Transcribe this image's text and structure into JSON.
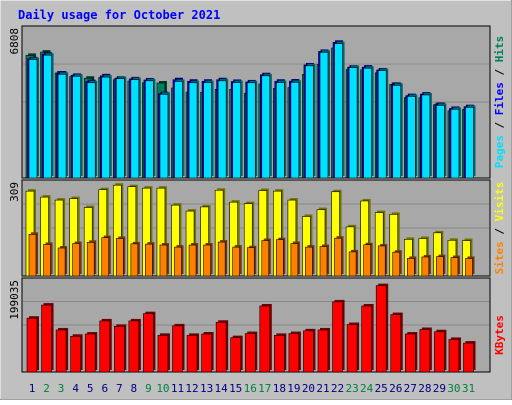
{
  "chart_data": [
    {
      "type": "bar",
      "title": "Daily usage for October 2021",
      "categories": [
        "1",
        "2",
        "3",
        "4",
        "5",
        "6",
        "7",
        "8",
        "9",
        "10",
        "11",
        "12",
        "13",
        "14",
        "15",
        "16",
        "17",
        "18",
        "19",
        "20",
        "21",
        "22",
        "23",
        "24",
        "25",
        "26",
        "27",
        "28",
        "29",
        "30",
        "31"
      ],
      "weekend_days": [
        "2",
        "3",
        "9",
        "10",
        "16",
        "17",
        "23",
        "24",
        "30",
        "31"
      ],
      "series": [
        {
          "name": "Hits",
          "color": "#00805c",
          "values": [
            5640,
            5790,
            4830,
            4660,
            4590,
            4620,
            4520,
            4460,
            4380,
            4370,
            4140,
            3950,
            3940,
            4080,
            4080,
            3900,
            4320,
            4120,
            4160,
            4770,
            5220,
            5980,
            4990,
            4980,
            4840,
            4310,
            3700,
            3690,
            3370,
            3090,
            3160
          ]
        },
        {
          "name": "Files",
          "color": "#0000ff",
          "values": [
            5480,
            5690,
            4820,
            4720,
            4430,
            4700,
            4590,
            4560,
            4510,
            3880,
            4520,
            4450,
            4450,
            4520,
            4440,
            4420,
            4750,
            4450,
            4460,
            5200,
            5820,
            6240,
            5100,
            5100,
            4970,
            4300,
            3790,
            3860,
            3380,
            3200,
            3280
          ]
        },
        {
          "name": "Pages",
          "color": "#00e0ff",
          "values": [
            5450,
            5650,
            4770,
            4680,
            4380,
            4640,
            4570,
            4520,
            4470,
            3850,
            4440,
            4380,
            4390,
            4470,
            4390,
            4380,
            4700,
            4390,
            4400,
            5160,
            5780,
            6180,
            5080,
            5050,
            4940,
            4260,
            3750,
            3820,
            3340,
            3160,
            3250
          ]
        },
        {
          "name": "Visits",
          "color": "#ffff00",
          "values": [
            285,
            265,
            255,
            260,
            230,
            290,
            305,
            300,
            295,
            295,
            238,
            218,
            232,
            288,
            248,
            243,
            287,
            285,
            255,
            200,
            223,
            283,
            165,
            252,
            213,
            207,
            123,
            126,
            145,
            120,
            119
          ]
        },
        {
          "name": "Sites",
          "color": "#ff8000",
          "values": [
            140,
            106,
            94,
            109,
            113,
            129,
            126,
            108,
            107,
            104,
            97,
            104,
            104,
            114,
            97,
            95,
            119,
            122,
            109,
            97,
            99,
            127,
            81,
            105,
            101,
            80,
            59,
            64,
            65,
            62,
            59
          ]
        }
      ],
      "ylabel_top": "Pages / Files / Hits",
      "ylabel_mid": "Sites / Visits",
      "ymax_top": 6808,
      "ymax_mid": 309,
      "grid": true
    },
    {
      "type": "bar",
      "categories": [
        "1",
        "2",
        "3",
        "4",
        "5",
        "6",
        "7",
        "8",
        "9",
        "10",
        "11",
        "12",
        "13",
        "14",
        "15",
        "16",
        "17",
        "18",
        "19",
        "20",
        "21",
        "22",
        "23",
        "24",
        "25",
        "26",
        "27",
        "28",
        "29",
        "30",
        "31"
      ],
      "series": [
        {
          "name": "KBytes",
          "color": "#ff0000",
          "values": [
            119000,
            148000,
            93000,
            79000,
            84000,
            113000,
            101000,
            113000,
            129000,
            81000,
            102000,
            81000,
            84000,
            110000,
            76000,
            85000,
            146000,
            81000,
            85000,
            91000,
            93000,
            155000,
            105000,
            146000,
            191000,
            127000,
            84000,
            94000,
            89000,
            72000,
            64000
          ]
        }
      ],
      "ylabel": "KBytes",
      "ymax": 199035,
      "grid": true
    }
  ],
  "colors": {
    "frame_bg": "#c0c0c0",
    "plot_bg": "#a8a8a8",
    "title": "#0000ff",
    "day_label": "#000080",
    "weekend_label": "#008040",
    "gridline": "#888888"
  }
}
